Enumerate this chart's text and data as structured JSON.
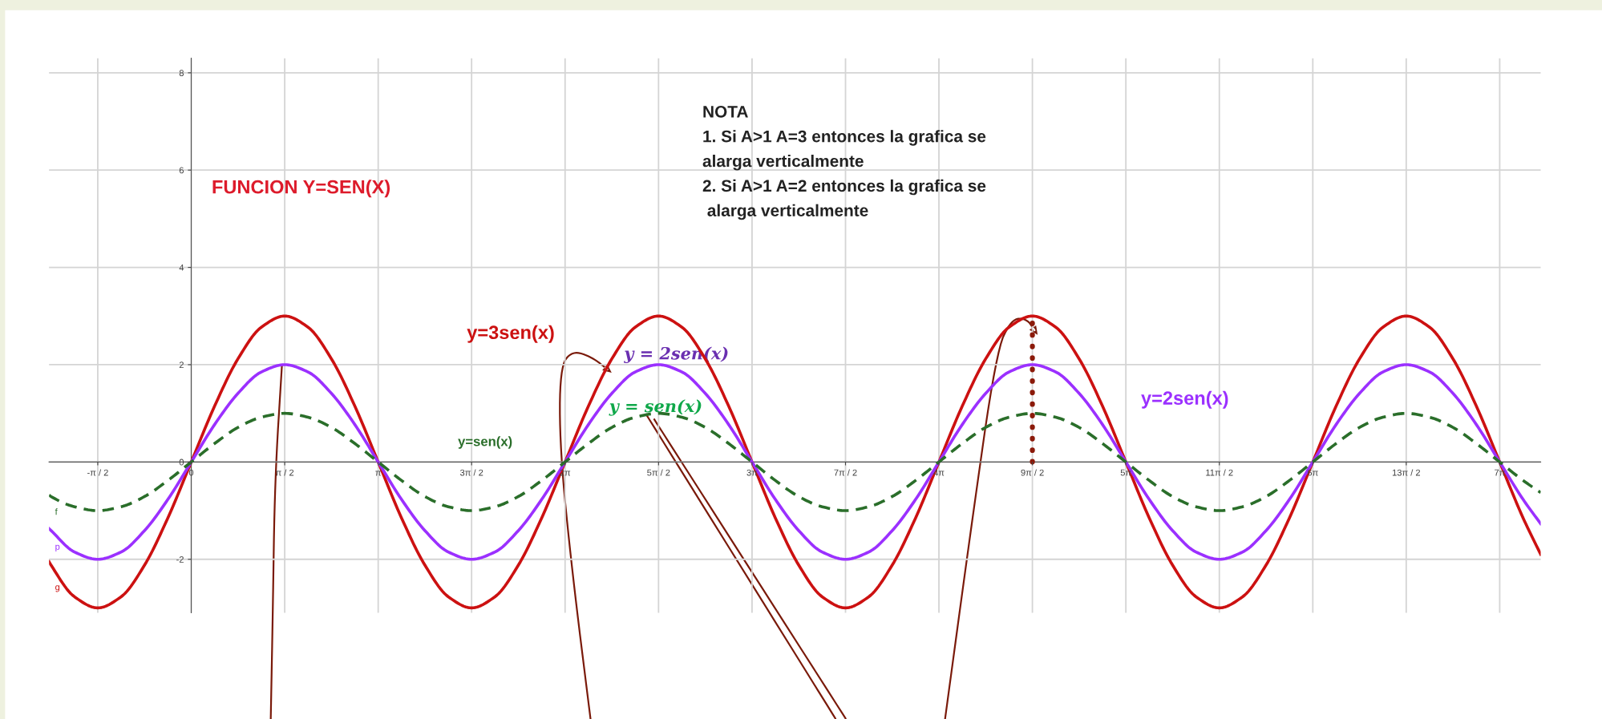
{
  "chart_data": {
    "type": "line",
    "title": "FUNCION Y=SEN(X)",
    "x": [
      -2.39,
      -2.356,
      -1.963,
      -1.571,
      -1.178,
      -0.785,
      -0.393,
      0,
      0.393,
      0.785,
      1.178,
      1.571,
      1.963,
      2.356,
      2.749,
      3.142,
      3.534,
      3.927,
      4.32,
      4.712,
      5.105,
      5.498,
      5.89,
      6.283,
      6.676,
      7.069,
      7.461,
      7.854,
      8.247,
      8.639,
      9.032,
      9.425,
      9.817,
      10.21,
      10.603,
      10.996,
      11.388,
      11.781,
      12.174,
      12.566,
      12.959,
      13.352,
      13.744,
      14.137,
      14.53,
      14.923,
      15.315,
      15.708,
      16.101,
      16.493,
      16.886,
      17.279,
      17.671,
      18.064,
      18.457,
      18.85,
      19.242,
      19.635,
      20.028,
      20.42,
      20.813,
      21.206,
      21.598,
      21.991,
      22.384,
      22.68
    ],
    "series": [
      {
        "name": "y=3sen(x)",
        "color": "#cc1111",
        "line_style": "solid",
        "values": [
          -2.05,
          -2.12,
          -2.77,
          -3,
          -2.77,
          -2.12,
          -1.15,
          0,
          1.15,
          2.12,
          2.77,
          3,
          2.77,
          2.12,
          1.15,
          0,
          -1.15,
          -2.12,
          -2.77,
          -3,
          -2.77,
          -2.12,
          -1.15,
          0,
          1.15,
          2.12,
          2.77,
          3,
          2.77,
          2.12,
          1.15,
          0,
          -1.15,
          -2.12,
          -2.77,
          -3,
          -2.77,
          -2.12,
          -1.15,
          0,
          1.15,
          2.12,
          2.77,
          3,
          2.77,
          2.12,
          1.15,
          0,
          -1.15,
          -2.12,
          -2.77,
          -3,
          -2.77,
          -2.12,
          -1.15,
          0,
          1.15,
          2.12,
          2.77,
          3,
          2.77,
          2.12,
          1.15,
          0,
          -1.15,
          -1.9
        ]
      },
      {
        "name": "y=2sen(x)",
        "color": "#9b30ff",
        "line_style": "solid",
        "values": [
          -1.37,
          -1.41,
          -1.85,
          -2,
          -1.85,
          -1.41,
          -0.77,
          0,
          0.77,
          1.41,
          1.85,
          2,
          1.85,
          1.41,
          0.77,
          0,
          -0.77,
          -1.41,
          -1.85,
          -2,
          -1.85,
          -1.41,
          -0.77,
          0,
          0.77,
          1.41,
          1.85,
          2,
          1.85,
          1.41,
          0.77,
          0,
          -0.77,
          -1.41,
          -1.85,
          -2,
          -1.85,
          -1.41,
          -0.77,
          0,
          0.77,
          1.41,
          1.85,
          2,
          1.85,
          1.41,
          0.77,
          0,
          -0.77,
          -1.41,
          -1.85,
          -2,
          -1.85,
          -1.41,
          -0.77,
          0,
          0.77,
          1.41,
          1.85,
          2,
          1.85,
          1.41,
          0.77,
          0,
          -0.77,
          -1.27
        ]
      },
      {
        "name": "y=sen(x)",
        "color": "#2a6e2a",
        "line_style": "dashed",
        "values": [
          -0.68,
          -0.71,
          -0.92,
          -1,
          -0.92,
          -0.71,
          -0.38,
          0,
          0.38,
          0.71,
          0.92,
          1,
          0.92,
          0.71,
          0.38,
          0,
          -0.38,
          -0.71,
          -0.92,
          -1,
          -0.92,
          -0.71,
          -0.38,
          0,
          0.38,
          0.71,
          0.92,
          1,
          0.92,
          0.71,
          0.38,
          0,
          -0.38,
          -0.71,
          -0.92,
          -1,
          -0.92,
          -0.71,
          -0.38,
          0,
          0.38,
          0.71,
          0.92,
          1,
          0.92,
          0.71,
          0.38,
          0,
          -0.38,
          -0.71,
          -0.92,
          -1,
          -0.92,
          -0.71,
          -0.38,
          0,
          0.38,
          0.71,
          0.92,
          1,
          0.92,
          0.71,
          0.38,
          0,
          -0.38,
          -0.63
        ]
      },
      {
        "type": "line",
        "x": [
          14.137,
          14.137
        ],
        "color": "#8b1a0a",
        "line_style": "dotted",
        "values": [
          0,
          3
        ]
      }
    ],
    "xlim": [
      -2.39,
      22.68
    ],
    "ylim": [
      -3.1,
      8.3
    ],
    "xticks": [
      {
        "value": -1.571,
        "label": "-π / 2"
      },
      {
        "value": 0,
        "label": "0"
      },
      {
        "value": 1.571,
        "label": "π / 2"
      },
      {
        "value": 3.142,
        "label": "π"
      },
      {
        "value": 4.712,
        "label": "3π / 2"
      },
      {
        "value": 6.283,
        "label": "2π"
      },
      {
        "value": 7.854,
        "label": "5π / 2"
      },
      {
        "value": 9.425,
        "label": "3π"
      },
      {
        "value": 10.996,
        "label": "7π / 2"
      },
      {
        "value": 12.566,
        "label": "4π"
      },
      {
        "value": 14.137,
        "label": "9π / 2"
      },
      {
        "value": 15.708,
        "label": "5π"
      },
      {
        "value": 17.279,
        "label": "11π / 2"
      },
      {
        "value": 18.85,
        "label": "6π"
      },
      {
        "value": 20.42,
        "label": "13π / 2"
      },
      {
        "value": 21.991,
        "label": "7π"
      }
    ],
    "yticks": [
      -2,
      0,
      2,
      4,
      6,
      8
    ],
    "grid": true,
    "legend": false,
    "marker": "none",
    "annotations": [
      "NOTA\n1. Si A>1 A=3 entonces la grafica se\nalarga verticalmente\n2. Si A>1 A=2 entonces la grafica se\n alarga verticalmente",
      "y = 2sen(x)",
      "y = sen(x)",
      "f",
      "p",
      "g"
    ]
  }
}
